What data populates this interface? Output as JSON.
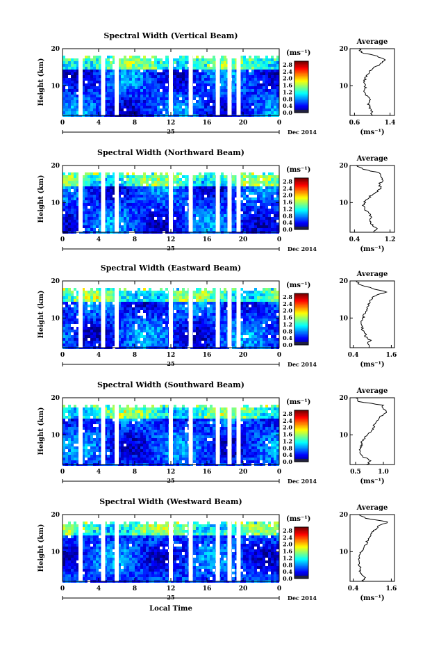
{
  "figure": {
    "x_axis_label": "Local Time",
    "date_label": "Dec 2014",
    "day_label": "25"
  },
  "chart_data": [
    {
      "type": "heatmap",
      "title": "Spectral Width (Vertical Beam)",
      "ylabel": "Height (km)",
      "xticks": [
        "0",
        "4",
        "8",
        "12",
        "16",
        "20",
        "0"
      ],
      "yticks": [
        "10",
        "20"
      ],
      "xlim": [
        0,
        24
      ],
      "ylim": [
        2,
        20
      ],
      "colorbar": {
        "unit": "(ms⁻¹)",
        "ticks": [
          "0.0",
          "0.4",
          "0.8",
          "1.2",
          "1.6",
          "2.0",
          "2.4",
          "2.8"
        ],
        "range": [
          0,
          3.0
        ]
      },
      "average": {
        "title": "Average",
        "unit": "(ms⁻¹)",
        "xticks": [
          "0.6",
          "1.4"
        ],
        "xlim": [
          0.5,
          1.5
        ],
        "heights": [
          2,
          3,
          4,
          5,
          6,
          7,
          8,
          9,
          10,
          11,
          12,
          13,
          14,
          15,
          16,
          17,
          18,
          19,
          20
        ],
        "values": [
          1.0,
          0.98,
          0.95,
          0.92,
          0.96,
          0.9,
          0.85,
          0.82,
          0.86,
          0.8,
          0.84,
          0.9,
          0.95,
          1.05,
          1.2,
          1.3,
          1.1,
          0.75,
          0.7
        ]
      }
    },
    {
      "type": "heatmap",
      "title": "Spectral Width (Northward Beam)",
      "ylabel": "Height (km)",
      "xticks": [
        "0",
        "4",
        "8",
        "12",
        "16",
        "20",
        "0"
      ],
      "yticks": [
        "10",
        "20"
      ],
      "xlim": [
        0,
        24
      ],
      "ylim": [
        2,
        20
      ],
      "colorbar": {
        "unit": "(ms⁻¹)",
        "ticks": [
          "0.0",
          "0.4",
          "0.8",
          "1.2",
          "1.6",
          "2.0",
          "2.4",
          "2.8"
        ],
        "range": [
          0,
          3.0
        ]
      },
      "average": {
        "title": "Average",
        "unit": "(ms⁻¹)",
        "xticks": [
          "0.4",
          "1.2"
        ],
        "xlim": [
          0.3,
          1.3
        ],
        "heights": [
          2,
          3,
          4,
          5,
          6,
          7,
          8,
          9,
          10,
          11,
          12,
          13,
          14,
          15,
          16,
          17,
          18,
          19,
          20
        ],
        "values": [
          0.85,
          0.9,
          0.8,
          0.75,
          0.78,
          0.72,
          0.65,
          0.6,
          0.62,
          0.7,
          0.78,
          0.9,
          1.0,
          0.95,
          1.05,
          1.0,
          0.95,
          0.6,
          0.45
        ]
      }
    },
    {
      "type": "heatmap",
      "title": "Spectral Width (Eastward Beam)",
      "ylabel": "Height (km)",
      "xticks": [
        "0",
        "4",
        "8",
        "12",
        "16",
        "20",
        "0"
      ],
      "yticks": [
        "10",
        "20"
      ],
      "xlim": [
        0,
        24
      ],
      "ylim": [
        2,
        20
      ],
      "colorbar": {
        "unit": "(ms⁻¹)",
        "ticks": [
          "0.0",
          "0.4",
          "0.8",
          "1.2",
          "1.6",
          "2.0",
          "2.4",
          "2.8"
        ],
        "range": [
          0,
          3.0
        ]
      },
      "average": {
        "title": "Average",
        "unit": "(ms⁻¹)",
        "xticks": [
          "0.4",
          "1.6"
        ],
        "xlim": [
          0.3,
          1.7
        ],
        "heights": [
          2,
          3,
          4,
          5,
          6,
          7,
          8,
          9,
          10,
          11,
          12,
          13,
          14,
          15,
          16,
          17,
          18,
          19,
          20
        ],
        "values": [
          0.9,
          0.85,
          0.95,
          0.8,
          0.75,
          0.7,
          0.65,
          0.68,
          0.72,
          0.75,
          0.8,
          0.85,
          0.9,
          0.95,
          1.1,
          1.45,
          1.0,
          0.6,
          0.5
        ]
      }
    },
    {
      "type": "heatmap",
      "title": "Spectral Width (Southward Beam)",
      "ylabel": "Height (km)",
      "xticks": [
        "0",
        "4",
        "8",
        "12",
        "16",
        "20",
        "0"
      ],
      "yticks": [
        "10",
        "20"
      ],
      "xlim": [
        0,
        24
      ],
      "ylim": [
        2,
        20
      ],
      "colorbar": {
        "unit": "(ms⁻¹)",
        "ticks": [
          "0.0",
          "0.4",
          "0.8",
          "1.2",
          "1.6",
          "2.0",
          "2.4",
          "2.8"
        ],
        "range": [
          0,
          3.0
        ]
      },
      "average": {
        "title": "Average",
        "unit": "(ms⁻¹)",
        "xticks": [
          "0.5",
          "1.0"
        ],
        "xlim": [
          0.4,
          1.2
        ],
        "heights": [
          2,
          3,
          4,
          5,
          6,
          7,
          8,
          9,
          10,
          11,
          12,
          13,
          14,
          15,
          16,
          17,
          18,
          19,
          20
        ],
        "values": [
          0.7,
          0.78,
          0.65,
          0.6,
          0.58,
          0.6,
          0.62,
          0.65,
          0.72,
          0.78,
          0.82,
          0.85,
          0.9,
          0.95,
          1.05,
          1.0,
          0.98,
          0.55,
          0.5
        ]
      }
    },
    {
      "type": "heatmap",
      "title": "Spectral Width (Westward Beam)",
      "ylabel": "Height (km)",
      "xticks": [
        "0",
        "4",
        "8",
        "12",
        "16",
        "20",
        "0"
      ],
      "yticks": [
        "10",
        "20"
      ],
      "xlim": [
        0,
        24
      ],
      "ylim": [
        2,
        20
      ],
      "colorbar": {
        "unit": "(ms⁻¹)",
        "ticks": [
          "0.0",
          "0.4",
          "0.8",
          "1.2",
          "1.6",
          "2.0",
          "2.4",
          "2.8"
        ],
        "range": [
          0,
          3.0
        ]
      },
      "average": {
        "title": "Average",
        "unit": "(ms⁻¹)",
        "xticks": [
          "0.4",
          "1.6"
        ],
        "xlim": [
          0.3,
          1.7
        ],
        "heights": [
          2,
          3,
          4,
          5,
          6,
          7,
          8,
          9,
          10,
          11,
          12,
          13,
          14,
          15,
          16,
          17,
          18,
          19,
          20
        ],
        "values": [
          0.7,
          0.75,
          0.65,
          0.6,
          0.62,
          0.58,
          0.6,
          0.62,
          0.65,
          0.72,
          0.8,
          0.85,
          0.9,
          1.0,
          1.1,
          1.2,
          1.5,
          0.8,
          0.6
        ]
      }
    }
  ]
}
